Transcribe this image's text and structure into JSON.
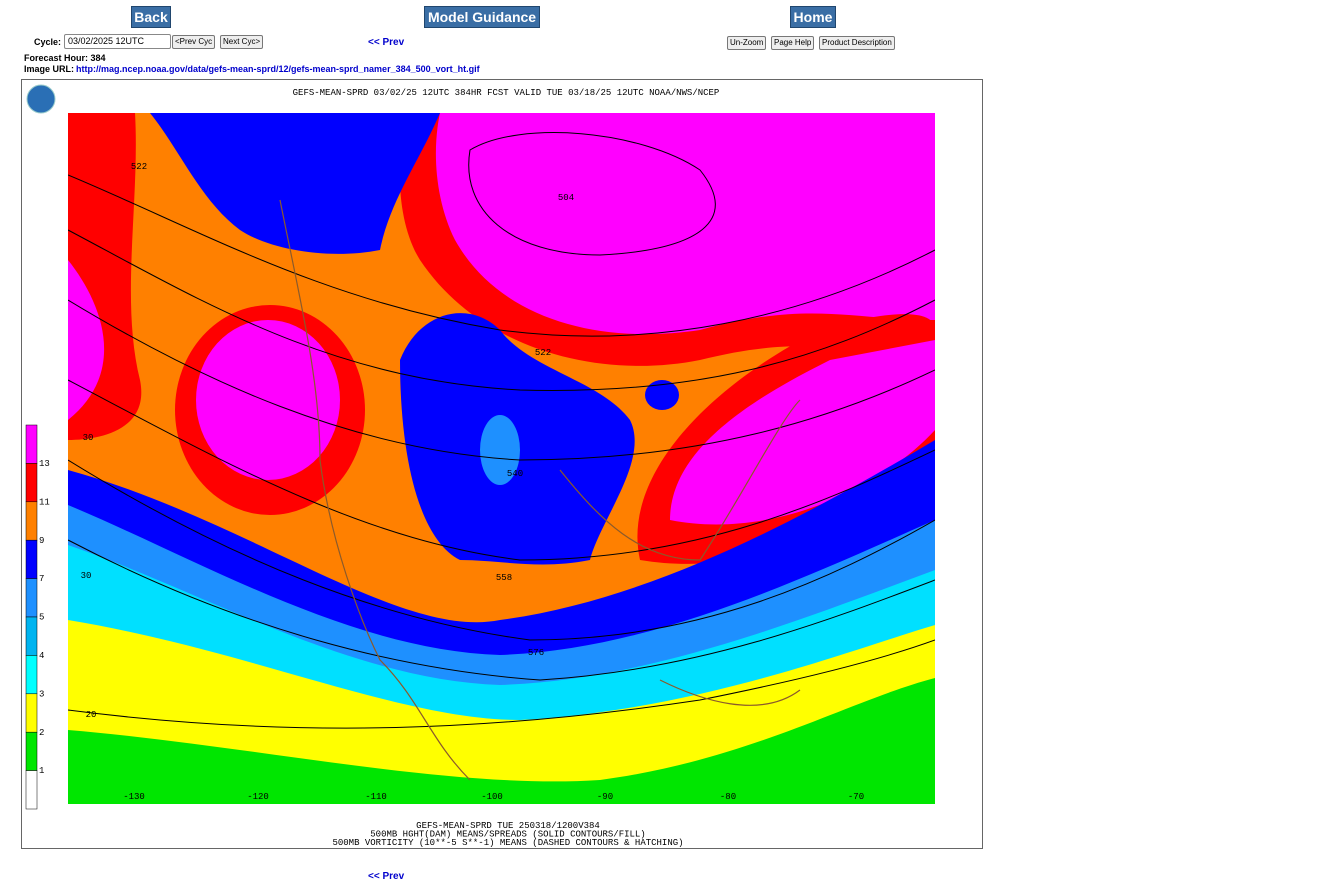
{
  "header": {
    "back": "Back",
    "model_guidance": "Model Guidance",
    "home": "Home"
  },
  "controls": {
    "cycle_label": "Cycle:",
    "cycle_value": "03/02/2025 12UTC",
    "prev_cycle": "<Prev Cyc",
    "next_cycle": "Next Cyc>",
    "prev": "<< Prev",
    "unzoom": "Un-Zoom",
    "page_help": "Page Help",
    "product_description": "Product Description"
  },
  "info": {
    "forecast_hour": "Forecast Hour: 384",
    "image_url_label": "Image URL:",
    "image_url": "http://mag.ncep.noaa.gov/data/gefs-mean-sprd/12/gefs-mean-sprd_namer_384_500_vort_ht.gif"
  },
  "map": {
    "title": "GEFS-MEAN-SPRD 03/02/25 12UTC 384HR FCST VALID TUE 03/18/25 12UTC NOAA/NWS/NCEP",
    "colorbar_labels": [
      "13",
      "11",
      "9",
      "7",
      "5",
      "4",
      "3",
      "2",
      "1"
    ],
    "contour_labels": [
      "522",
      "504",
      "522",
      "540",
      "558",
      "576",
      "30",
      "30",
      "20"
    ],
    "longitude_labels": [
      "-130",
      "-120",
      "-110",
      "-100",
      "-90",
      "-80",
      "-70"
    ],
    "caption": [
      "GEFS-MEAN-SPRD TUE 250318/1200V384",
      "500MB HGHT(DAM) MEANS/SPREADS (SOLID CONTOURS/FILL)",
      "500MB VORTICITY (10**-5 S**-1) MEANS (DASHED CONTOURS & HATCHING)"
    ]
  },
  "footer": {
    "prev": "<< Prev"
  }
}
